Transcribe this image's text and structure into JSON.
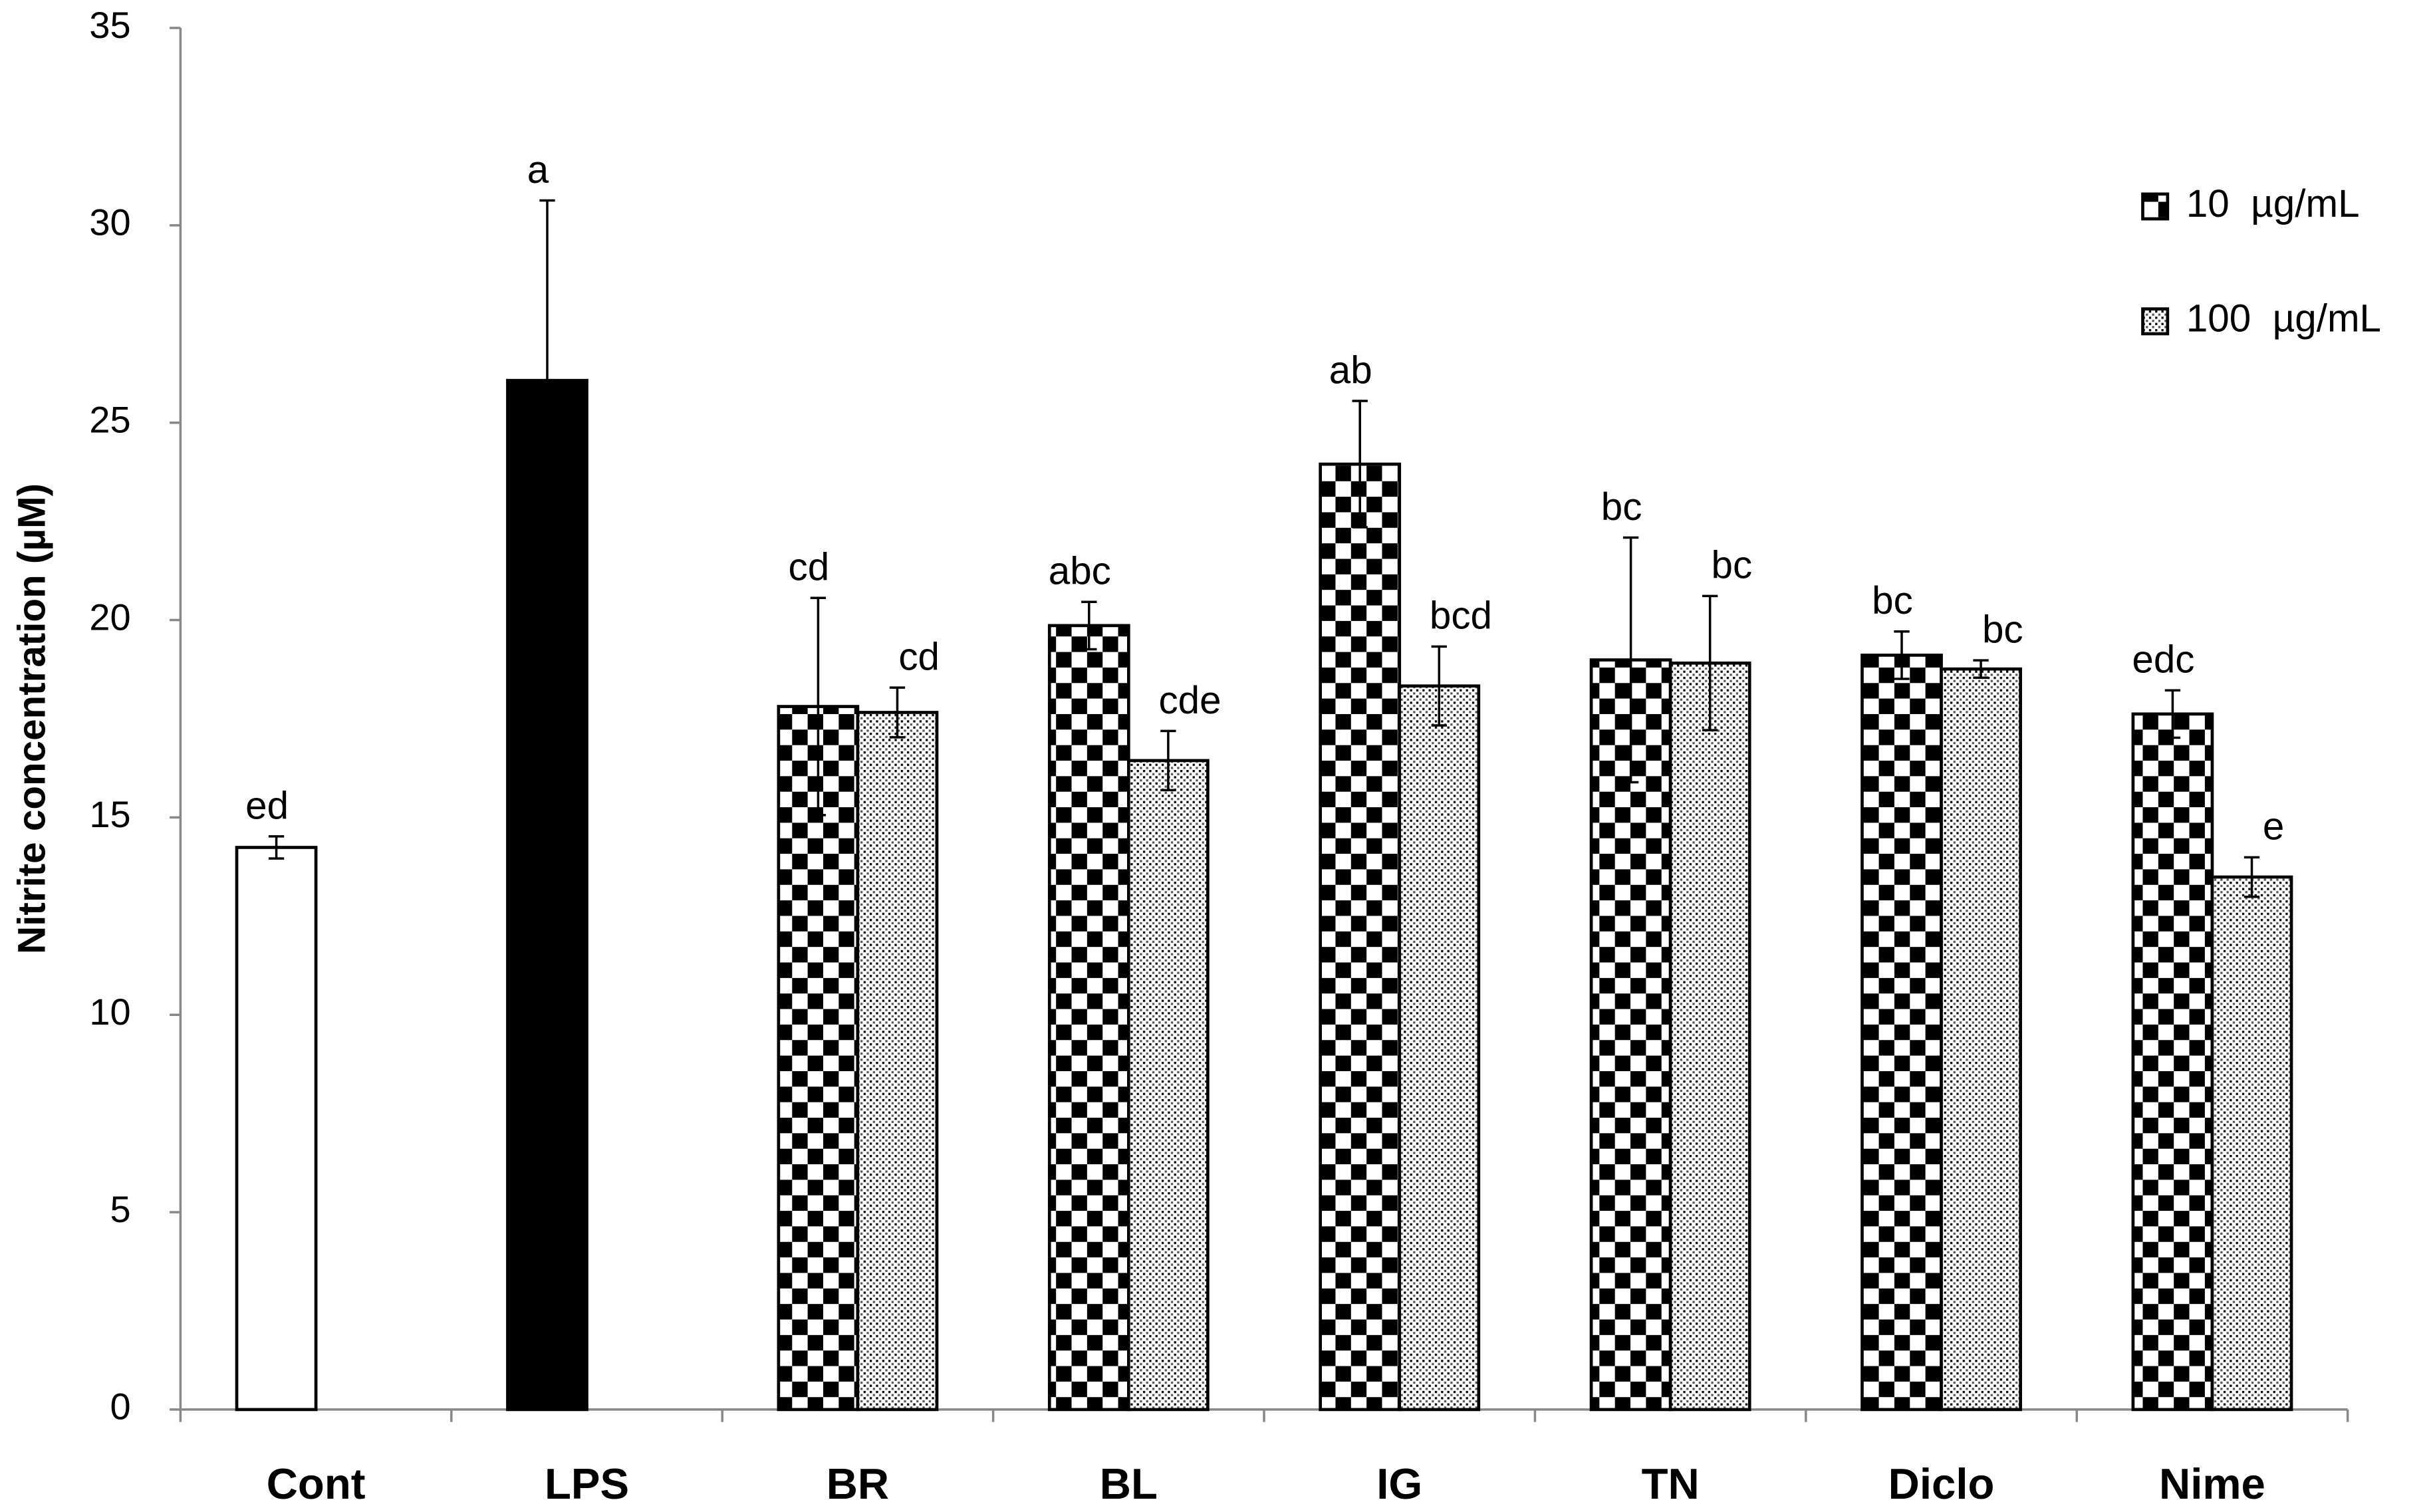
{
  "chart_data": {
    "type": "bar",
    "y_label": "Nitrite concentration (µM)",
    "categories": [
      "Cont",
      "LPS",
      "BR",
      "BL",
      "IG",
      "TN",
      "Diclo",
      "Nime"
    ],
    "ylim": [
      0,
      35
    ],
    "yticks": [
      0,
      5,
      10,
      15,
      20,
      25,
      30,
      35
    ],
    "grid": false,
    "legend": "top-right",
    "series": [
      {
        "colors": [
          "#ffffff",
          "#000000",
          null,
          null,
          null,
          null,
          null,
          null
        ],
        "values": [
          14.24,
          26.07,
          null,
          null,
          null,
          null,
          null,
          null
        ],
        "errors": [
          0.28,
          4.56,
          null,
          null,
          null,
          null,
          null,
          null
        ],
        "letters": [
          "ed",
          "a",
          null,
          null,
          null,
          null,
          null,
          null
        ]
      },
      {
        "name": "10  µg/mL",
        "color": "#000000",
        "pattern": "checker",
        "values": [
          null,
          null,
          17.81,
          19.86,
          23.95,
          18.99,
          19.11,
          17.62
        ],
        "errors": [
          null,
          null,
          2.75,
          0.6,
          1.6,
          3.1,
          0.6,
          0.6
        ],
        "letters": [
          null,
          null,
          "cd",
          "abc",
          "ab",
          "bc",
          "bc",
          "edc"
        ]
      },
      {
        "name": "100  µg/mL",
        "color": "#000000",
        "pattern": "dots",
        "values": [
          null,
          null,
          17.66,
          16.44,
          18.33,
          18.91,
          18.76,
          13.49
        ],
        "errors": [
          null,
          null,
          0.63,
          0.75,
          1.0,
          1.7,
          0.22,
          0.5
        ],
        "letters": [
          null,
          null,
          "cd",
          "cde",
          "bcd",
          "bc",
          "bc",
          "e"
        ]
      }
    ]
  }
}
